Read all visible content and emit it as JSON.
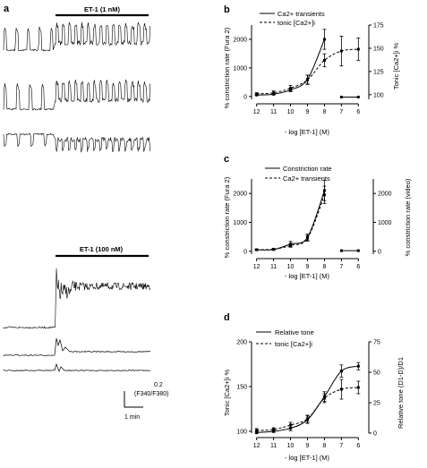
{
  "panel_a": {
    "label": "a",
    "et1_low_label": "ET-1 (1 nM)",
    "et1_high_label": "ET-1 (100 nM)",
    "scale_value": "0.2",
    "scale_unit": "(F340/F380)",
    "time_label": "1 min"
  },
  "chart_data": [
    {
      "id": "b",
      "type": "line",
      "panel_label": "b",
      "xlabel": "- log [ET-1] (M)",
      "ylabel": "% constriction rate (Fura 2)",
      "y2label": "Tonic [Ca2+]i %",
      "x_ticks": [
        "12",
        "11",
        "10",
        "9",
        "8",
        "7",
        "6"
      ],
      "y_ticks": [
        "0",
        "1000",
        "2000"
      ],
      "y2_ticks": [
        "100",
        "125",
        "150",
        "175"
      ],
      "ylim": [
        -100,
        2500
      ],
      "y2lim": [
        95,
        175
      ],
      "legend": [
        "Ca2+ transients",
        "tonic [Ca2+]i"
      ],
      "series": [
        {
          "name": "Ca2+ transients",
          "axis": "left",
          "style": "solid",
          "x": [
            12,
            11,
            10,
            9,
            8
          ],
          "y": [
            50,
            80,
            230,
            600,
            2000
          ],
          "err": [
            15,
            25,
            60,
            140,
            350
          ]
        },
        {
          "name": "tonic [Ca2+]i",
          "axis": "right",
          "style": "dashed",
          "x": [
            12,
            11,
            10,
            9,
            8,
            7,
            6
          ],
          "y": [
            101,
            102,
            107,
            116,
            137,
            147,
            149
          ],
          "err": [
            1,
            2,
            3,
            5,
            7,
            16,
            12
          ]
        },
        {
          "name": "",
          "axis": "left",
          "style": "solid",
          "x": [
            7,
            6
          ],
          "y": [
            -20,
            -20
          ],
          "err": [
            0,
            0
          ]
        }
      ]
    },
    {
      "id": "c",
      "type": "line",
      "panel_label": "c",
      "xlabel": "- log [ET-1] (M)",
      "ylabel": "% constriction rate (Fura 2)",
      "y2label": "% constriction rate (video)",
      "x_ticks": [
        "12",
        "11",
        "10",
        "9",
        "8",
        "7",
        "6"
      ],
      "y_ticks": [
        "0",
        "1000",
        "2000"
      ],
      "y2_ticks": [
        "0",
        "1000",
        "2000"
      ],
      "ylim": [
        -100,
        2500
      ],
      "y2lim": [
        -100,
        2500
      ],
      "legend": [
        "Constriction rate",
        "Ca2+ transients"
      ],
      "series": [
        {
          "name": "Constriction rate",
          "axis": "left",
          "style": "solid",
          "x": [
            12,
            11,
            10,
            9,
            8
          ],
          "y": [
            50,
            60,
            250,
            480,
            2100
          ],
          "err": [
            10,
            15,
            90,
            110,
            350
          ]
        },
        {
          "name": "Ca2+ transients",
          "axis": "left",
          "style": "dashed",
          "x": [
            12,
            11,
            10,
            9,
            8
          ],
          "y": [
            55,
            70,
            200,
            450,
            1950
          ],
          "err": [
            10,
            15,
            60,
            100,
            300
          ]
        },
        {
          "name": "",
          "axis": "left",
          "style": "solid",
          "x": [
            7,
            6
          ],
          "y": [
            20,
            20
          ],
          "err": [
            0,
            0
          ]
        }
      ]
    },
    {
      "id": "d",
      "type": "line",
      "panel_label": "d",
      "xlabel": "- log [ET-1] (M)",
      "ylabel": "Tonic [Ca2+]i %",
      "y2label": "Relative tone (D1-D)/D1",
      "x_ticks": [
        "12",
        "11",
        "10",
        "9",
        "8",
        "7",
        "6"
      ],
      "y_ticks": [
        "100",
        "150",
        "200"
      ],
      "y2_ticks": [
        "0",
        "25",
        "50",
        "75"
      ],
      "ylim": [
        98,
        200
      ],
      "y2lim": [
        0,
        75
      ],
      "legend": [
        "Relative tone",
        "tonic [Ca2+]i"
      ],
      "series": [
        {
          "name": "Relative tone",
          "axis": "right",
          "style": "solid",
          "x": [
            12,
            11,
            10,
            9,
            8,
            7,
            6
          ],
          "y": [
            0.5,
            1.5,
            4,
            11,
            30,
            51,
            55
          ],
          "err": [
            1,
            1,
            2,
            3,
            4,
            5,
            3
          ]
        },
        {
          "name": "tonic [Ca2+]i",
          "axis": "left",
          "style": "dashed",
          "x": [
            12,
            11,
            10,
            9,
            8,
            7,
            6
          ],
          "y": [
            101,
            102,
            107,
            114,
            137,
            147,
            149
          ],
          "err": [
            2,
            2,
            3,
            4,
            5,
            11,
            7
          ]
        }
      ]
    }
  ]
}
